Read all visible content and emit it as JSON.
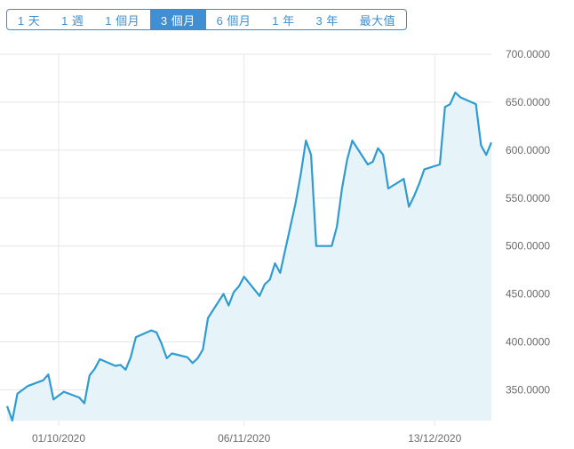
{
  "range_selector": {
    "buttons": [
      {
        "label": "1 天",
        "active": false
      },
      {
        "label": "1 週",
        "active": false
      },
      {
        "label": "1 個月",
        "active": false
      },
      {
        "label": "3 個月",
        "active": true
      },
      {
        "label": "6 個月",
        "active": false
      },
      {
        "label": "1 年",
        "active": false
      },
      {
        "label": "3 年",
        "active": false
      },
      {
        "label": "最大值",
        "active": false
      }
    ]
  },
  "colors": {
    "line": "#2f9bd1",
    "fill": "#e6f4fa",
    "grid": "#e6e6e6",
    "accent": "#3f8fd2"
  },
  "chart_data": {
    "type": "area",
    "title": "",
    "xlabel": "",
    "ylabel": "",
    "ylim": [
      318,
      700
    ],
    "x_tick_labels": [
      "01/10/2020",
      "06/11/2020",
      "13/12/2020"
    ],
    "y_tick_labels": [
      "350.0000",
      "400.0000",
      "450.0000",
      "500.0000",
      "550.0000",
      "600.0000",
      "650.0000",
      "700.0000"
    ],
    "grid": true,
    "series": [
      {
        "name": "",
        "x": [
          "21/09/2020",
          "22/09/2020",
          "23/09/2020",
          "24/09/2020",
          "25/09/2020",
          "28/09/2020",
          "29/09/2020",
          "30/09/2020",
          "01/10/2020",
          "02/10/2020",
          "05/10/2020",
          "06/10/2020",
          "07/10/2020",
          "08/10/2020",
          "09/10/2020",
          "12/10/2020",
          "13/10/2020",
          "14/10/2020",
          "15/10/2020",
          "16/10/2020",
          "19/10/2020",
          "20/10/2020",
          "21/10/2020",
          "22/10/2020",
          "23/10/2020",
          "26/10/2020",
          "27/10/2020",
          "28/10/2020",
          "29/10/2020",
          "30/10/2020",
          "02/11/2020",
          "03/11/2020",
          "04/11/2020",
          "05/11/2020",
          "06/11/2020",
          "09/11/2020",
          "10/11/2020",
          "11/11/2020",
          "12/11/2020",
          "13/11/2020",
          "16/11/2020",
          "17/11/2020",
          "18/11/2020",
          "19/11/2020",
          "20/11/2020",
          "23/11/2020",
          "24/11/2020",
          "25/11/2020",
          "26/11/2020",
          "27/11/2020",
          "30/11/2020",
          "01/12/2020",
          "02/12/2020",
          "03/12/2020",
          "04/12/2020",
          "07/12/2020",
          "08/12/2020",
          "09/12/2020",
          "10/12/2020",
          "11/12/2020",
          "14/12/2020",
          "15/12/2020",
          "16/12/2020",
          "17/12/2020",
          "18/12/2020",
          "21/12/2020",
          "22/12/2020",
          "23/12/2020",
          "24/12/2020"
        ],
        "values": [
          333,
          318,
          346,
          350,
          354,
          360,
          366,
          340,
          344,
          348,
          342,
          336,
          365,
          372,
          382,
          375,
          376,
          371,
          384,
          405,
          412,
          410,
          398,
          383,
          388,
          384,
          378,
          383,
          392,
          425,
          450,
          438,
          452,
          458,
          468,
          448,
          460,
          465,
          482,
          472,
          545,
          575,
          610,
          595,
          500,
          500,
          520,
          560,
          590,
          610,
          585,
          588,
          602,
          595,
          560,
          570,
          541,
          552,
          565,
          580,
          585,
          645,
          648,
          660,
          655,
          648,
          605,
          595,
          608
        ]
      }
    ]
  }
}
